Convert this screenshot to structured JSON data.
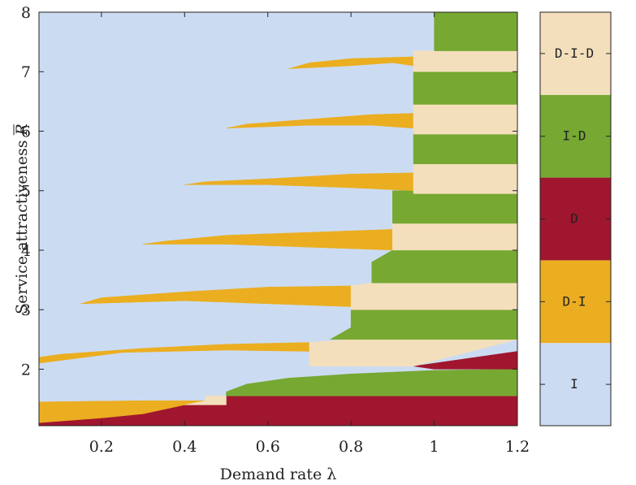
{
  "chart_data": {
    "type": "heatmap",
    "title": "",
    "xlabel": "Demand rate λ",
    "ylabel_text": "Service attractiveness ",
    "ylabel_symbol": "R",
    "xlim": [
      0.05,
      1.2
    ],
    "ylim": [
      1.05,
      8
    ],
    "x_ticks": [
      "0.2",
      "0.4",
      "0.6",
      "0.8",
      "1",
      "1.2"
    ],
    "x_tick_values": [
      0.2,
      0.4,
      0.6,
      0.8,
      1.0,
      1.2
    ],
    "y_ticks": [
      "2",
      "3",
      "4",
      "5",
      "6",
      "7",
      "8"
    ],
    "y_tick_values": [
      2,
      3,
      4,
      5,
      6,
      7,
      8
    ],
    "background_class": "I",
    "colorbar": [
      {
        "label": "I",
        "color": "#cbdcf2"
      },
      {
        "label": "D-I",
        "color": "#ebae21"
      },
      {
        "label": "D",
        "color": "#a0162e"
      },
      {
        "label": "I-D",
        "color": "#76a832"
      },
      {
        "label": "D-I-D",
        "color": "#f4dfbd"
      }
    ],
    "regions": [
      {
        "class": "D",
        "points": [
          [
            0.05,
            1.05
          ],
          [
            1.2,
            1.05
          ],
          [
            1.2,
            1.55
          ],
          [
            0.5,
            1.55
          ],
          [
            0.5,
            1.4
          ],
          [
            0.4,
            1.4
          ],
          [
            0.3,
            1.25
          ],
          [
            0.2,
            1.18
          ],
          [
            0.05,
            1.1
          ]
        ]
      },
      {
        "class": "D-I",
        "points": [
          [
            0.05,
            1.1
          ],
          [
            0.2,
            1.18
          ],
          [
            0.3,
            1.25
          ],
          [
            0.4,
            1.4
          ],
          [
            0.45,
            1.47
          ],
          [
            0.3,
            1.47
          ],
          [
            0.05,
            1.45
          ]
        ]
      },
      {
        "class": "D-I-D",
        "points": [
          [
            0.4,
            1.4
          ],
          [
            0.5,
            1.4
          ],
          [
            0.5,
            1.55
          ],
          [
            0.45,
            1.55
          ],
          [
            0.45,
            1.47
          ]
        ]
      },
      {
        "class": "I-D",
        "points": [
          [
            0.5,
            1.55
          ],
          [
            1.2,
            1.55
          ],
          [
            1.2,
            2.0
          ],
          [
            1.0,
            1.98
          ],
          [
            0.8,
            1.92
          ],
          [
            0.65,
            1.85
          ],
          [
            0.55,
            1.75
          ],
          [
            0.5,
            1.62
          ]
        ]
      },
      {
        "class": "D",
        "points": [
          [
            0.95,
            2.05
          ],
          [
            1.1,
            2.2
          ],
          [
            1.2,
            2.3
          ],
          [
            1.2,
            2.0
          ],
          [
            1.0,
            2.0
          ]
        ]
      },
      {
        "class": "D-I",
        "points": [
          [
            0.05,
            2.1
          ],
          [
            0.25,
            2.28
          ],
          [
            0.5,
            2.32
          ],
          [
            0.7,
            2.3
          ],
          [
            0.7,
            2.45
          ],
          [
            0.5,
            2.42
          ],
          [
            0.3,
            2.35
          ],
          [
            0.1,
            2.25
          ],
          [
            0.05,
            2.2
          ]
        ]
      },
      {
        "class": "D-I-D",
        "points": [
          [
            0.7,
            2.05
          ],
          [
            0.95,
            2.05
          ],
          [
            1.2,
            2.5
          ],
          [
            0.8,
            2.5
          ],
          [
            0.7,
            2.45
          ]
        ]
      },
      {
        "class": "I-D",
        "points": [
          [
            0.75,
            2.5
          ],
          [
            1.2,
            2.5
          ],
          [
            1.2,
            3.0
          ],
          [
            0.8,
            3.0
          ],
          [
            0.8,
            2.7
          ]
        ]
      },
      {
        "class": "D-I",
        "points": [
          [
            0.15,
            3.1
          ],
          [
            0.4,
            3.15
          ],
          [
            0.6,
            3.1
          ],
          [
            0.8,
            3.05
          ],
          [
            0.8,
            3.4
          ],
          [
            0.6,
            3.38
          ],
          [
            0.4,
            3.3
          ],
          [
            0.2,
            3.2
          ]
        ]
      },
      {
        "class": "D-I-D",
        "points": [
          [
            0.8,
            3.0
          ],
          [
            1.2,
            3.0
          ],
          [
            1.2,
            3.45
          ],
          [
            0.85,
            3.45
          ],
          [
            0.8,
            3.4
          ]
        ]
      },
      {
        "class": "I-D",
        "points": [
          [
            0.85,
            3.45
          ],
          [
            1.2,
            3.45
          ],
          [
            1.2,
            4.0
          ],
          [
            0.9,
            4.0
          ],
          [
            0.85,
            3.8
          ]
        ]
      },
      {
        "class": "D-I",
        "points": [
          [
            0.3,
            4.1
          ],
          [
            0.5,
            4.1
          ],
          [
            0.7,
            4.05
          ],
          [
            0.9,
            4.0
          ],
          [
            0.9,
            4.35
          ],
          [
            0.7,
            4.3
          ],
          [
            0.5,
            4.25
          ],
          [
            0.35,
            4.15
          ]
        ]
      },
      {
        "class": "D-I-D",
        "points": [
          [
            0.9,
            4.0
          ],
          [
            1.2,
            4.0
          ],
          [
            1.2,
            4.45
          ],
          [
            0.9,
            4.45
          ]
        ]
      },
      {
        "class": "I-D",
        "points": [
          [
            0.9,
            4.45
          ],
          [
            1.2,
            4.45
          ],
          [
            1.2,
            5.0
          ],
          [
            0.9,
            5.0
          ]
        ]
      },
      {
        "class": "D-I",
        "points": [
          [
            0.4,
            5.1
          ],
          [
            0.6,
            5.1
          ],
          [
            0.8,
            5.05
          ],
          [
            0.95,
            5.0
          ],
          [
            0.95,
            5.3
          ],
          [
            0.8,
            5.28
          ],
          [
            0.6,
            5.2
          ],
          [
            0.45,
            5.15
          ]
        ]
      },
      {
        "class": "D-I-D",
        "points": [
          [
            0.95,
            4.95
          ],
          [
            1.2,
            4.95
          ],
          [
            1.2,
            5.45
          ],
          [
            0.95,
            5.45
          ]
        ]
      },
      {
        "class": "I-D",
        "points": [
          [
            0.95,
            5.45
          ],
          [
            1.2,
            5.45
          ],
          [
            1.2,
            6.0
          ],
          [
            0.95,
            6.0
          ]
        ]
      },
      {
        "class": "D-I",
        "points": [
          [
            0.5,
            6.05
          ],
          [
            0.7,
            6.1
          ],
          [
            0.85,
            6.1
          ],
          [
            0.95,
            6.05
          ],
          [
            0.95,
            6.3
          ],
          [
            0.85,
            6.28
          ],
          [
            0.7,
            6.2
          ],
          [
            0.55,
            6.12
          ]
        ]
      },
      {
        "class": "D-I-D",
        "points": [
          [
            0.95,
            5.95
          ],
          [
            1.2,
            5.95
          ],
          [
            1.2,
            6.45
          ],
          [
            0.95,
            6.45
          ]
        ]
      },
      {
        "class": "I-D",
        "points": [
          [
            0.95,
            6.45
          ],
          [
            1.2,
            6.45
          ],
          [
            1.2,
            7.0
          ],
          [
            0.95,
            7.0
          ]
        ]
      },
      {
        "class": "D-I",
        "points": [
          [
            0.65,
            7.05
          ],
          [
            0.8,
            7.1
          ],
          [
            0.9,
            7.15
          ],
          [
            0.95,
            7.1
          ],
          [
            0.95,
            7.25
          ],
          [
            0.8,
            7.22
          ],
          [
            0.7,
            7.15
          ]
        ]
      },
      {
        "class": "D-I-D",
        "points": [
          [
            0.95,
            7.0
          ],
          [
            1.2,
            7.0
          ],
          [
            1.2,
            7.35
          ],
          [
            0.95,
            7.35
          ]
        ]
      },
      {
        "class": "I-D",
        "points": [
          [
            1.0,
            7.35
          ],
          [
            1.2,
            7.35
          ],
          [
            1.2,
            8.0
          ],
          [
            1.0,
            8.0
          ]
        ]
      }
    ]
  }
}
